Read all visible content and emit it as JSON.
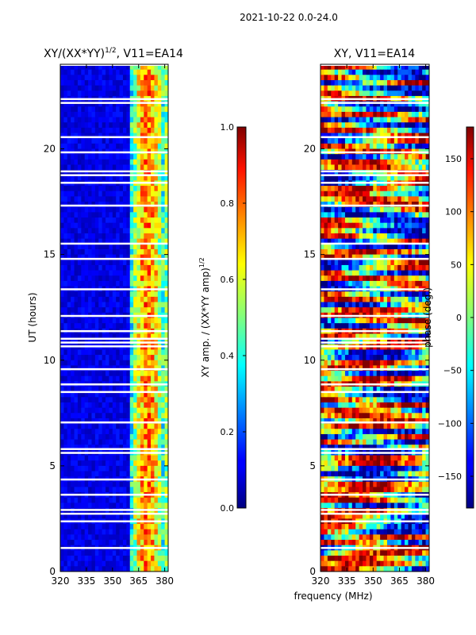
{
  "figure": {
    "suptitle": "2021-10-22 0.0-24.0",
    "shared_xlabel": "frequency (MHz)"
  },
  "chart_data": [
    {
      "type": "heatmap",
      "title": "XY/(XX*YY)",
      "title_sup": "1/2",
      "title_suffix": ", V11=EA14",
      "ylabel": "UT (hours)",
      "xlim": [
        320,
        382
      ],
      "ylim": [
        0,
        24
      ],
      "xticks": [
        320,
        335,
        350,
        365,
        380
      ],
      "yticks": [
        0,
        5,
        10,
        15,
        20
      ],
      "colormap": "jet",
      "colorbar": {
        "label": "XY amp. / (XX*YY amp)",
        "label_sup": "1/2",
        "range": [
          0.0,
          1.0
        ],
        "ticks": [
          "0.0",
          "0.2",
          "0.4",
          "0.6",
          "0.8",
          "1.0"
        ],
        "tick_values": [
          0.0,
          0.2,
          0.4,
          0.6,
          0.8,
          1.0
        ]
      },
      "description": "Low normalized amplitude (~0.05-0.15) from 320-361 MHz; elevated 0.3-0.8 in bands between 362 and 380 MHz; many horizontal white data gaps"
    },
    {
      "type": "heatmap",
      "title": "XY, V11=EA14",
      "xlim": [
        320,
        382
      ],
      "ylim": [
        0,
        24
      ],
      "xticks": [
        320,
        335,
        350,
        365,
        380
      ],
      "yticks": [
        0,
        5,
        10,
        15,
        20
      ],
      "colormap": "jet",
      "colorbar": {
        "label": "phase (deg.)",
        "range": [
          -180,
          180
        ],
        "ticks": [
          "−150",
          "−100",
          "−50",
          "0",
          "50",
          "100",
          "150"
        ],
        "tick_values": [
          -150,
          -100,
          -50,
          0,
          50,
          100,
          150
        ]
      },
      "description": "Phase spans full -180 to 180 deg range with horizontal banding and noisy structure; many data gaps"
    }
  ],
  "colors": {
    "jet_low": "#00007f",
    "jet_mid": "#7fff7f",
    "jet_high": "#7f0000",
    "gap": "#ffffff"
  }
}
